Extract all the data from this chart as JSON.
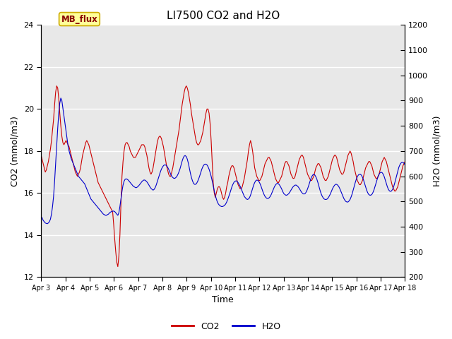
{
  "title": "LI7500 CO2 and H2O",
  "xlabel": "Time",
  "ylabel_left": "CO2 (mmol/m3)",
  "ylabel_right": "H2O (mmol/m3)",
  "ylim_left": [
    12,
    24
  ],
  "ylim_right": [
    200,
    1200
  ],
  "yticks_left": [
    12,
    14,
    16,
    18,
    20,
    22,
    24
  ],
  "yticks_right": [
    200,
    300,
    400,
    500,
    600,
    700,
    800,
    900,
    1000,
    1100,
    1200
  ],
  "xtick_labels": [
    "Apr 3",
    "Apr 4",
    "Apr 5",
    "Apr 6",
    "Apr 7",
    "Apr 8",
    "Apr 9",
    "Apr 10",
    "Apr 11",
    "Apr 12",
    "Apr 13",
    "Apr 14",
    "Apr 15",
    "Apr 16",
    "Apr 17",
    "Apr 18"
  ],
  "co2_color": "#cc0000",
  "h2o_color": "#0000cc",
  "figure_bg": "#ffffff",
  "plot_bg": "#e8e8e8",
  "grid_color": "#ffffff",
  "mb_flux_label": "MB_flux",
  "mb_flux_fg": "#880000",
  "mb_flux_bg": "#ffff99",
  "mb_flux_border": "#ccaa00",
  "legend_co2": "CO2",
  "legend_h2o": "H2O",
  "co2_data": [
    17.8,
    17.6,
    17.4,
    17.2,
    17.0,
    17.1,
    17.3,
    17.5,
    17.8,
    18.1,
    18.5,
    19.0,
    19.5,
    20.2,
    20.8,
    21.1,
    21.0,
    20.5,
    19.8,
    19.2,
    18.7,
    18.4,
    18.3,
    18.4,
    18.5,
    18.4,
    18.3,
    18.2,
    18.0,
    17.8,
    17.6,
    17.4,
    17.2,
    17.0,
    16.9,
    16.8,
    16.9,
    17.0,
    17.2,
    17.5,
    17.8,
    18.0,
    18.2,
    18.4,
    18.5,
    18.4,
    18.3,
    18.1,
    17.9,
    17.7,
    17.5,
    17.3,
    17.1,
    16.9,
    16.7,
    16.5,
    16.4,
    16.3,
    16.2,
    16.1,
    16.0,
    15.9,
    15.8,
    15.7,
    15.6,
    15.5,
    15.4,
    15.3,
    15.2,
    15.1,
    14.5,
    13.8,
    13.2,
    12.7,
    12.5,
    13.0,
    14.0,
    15.5,
    16.8,
    17.5,
    18.0,
    18.3,
    18.4,
    18.4,
    18.3,
    18.2,
    18.0,
    17.9,
    17.8,
    17.7,
    17.7,
    17.7,
    17.8,
    17.9,
    18.0,
    18.1,
    18.2,
    18.3,
    18.3,
    18.3,
    18.2,
    18.0,
    17.8,
    17.5,
    17.2,
    17.0,
    16.9,
    17.0,
    17.2,
    17.5,
    17.8,
    18.1,
    18.4,
    18.6,
    18.7,
    18.7,
    18.6,
    18.4,
    18.2,
    17.9,
    17.6,
    17.3,
    17.1,
    16.9,
    16.8,
    16.8,
    17.0,
    17.2,
    17.5,
    17.8,
    18.1,
    18.4,
    18.7,
    19.0,
    19.4,
    19.8,
    20.2,
    20.5,
    20.8,
    21.0,
    21.1,
    21.0,
    20.8,
    20.5,
    20.2,
    19.8,
    19.5,
    19.2,
    18.9,
    18.6,
    18.4,
    18.3,
    18.3,
    18.4,
    18.5,
    18.7,
    18.9,
    19.2,
    19.5,
    19.8,
    20.0,
    20.0,
    19.8,
    19.3,
    18.5,
    17.5,
    16.5,
    16.0,
    15.8,
    16.0,
    16.2,
    16.3,
    16.3,
    16.2,
    16.0,
    15.8,
    15.7,
    15.8,
    16.0,
    16.3,
    16.5,
    16.8,
    17.0,
    17.2,
    17.3,
    17.3,
    17.2,
    17.0,
    16.8,
    16.6,
    16.4,
    16.3,
    16.2,
    16.2,
    16.3,
    16.5,
    16.7,
    17.0,
    17.3,
    17.6,
    18.0,
    18.3,
    18.5,
    18.3,
    18.0,
    17.6,
    17.2,
    17.0,
    16.8,
    16.7,
    16.6,
    16.6,
    16.7,
    16.8,
    17.0,
    17.2,
    17.4,
    17.5,
    17.6,
    17.7,
    17.7,
    17.6,
    17.5,
    17.3,
    17.1,
    16.9,
    16.7,
    16.6,
    16.5,
    16.5,
    16.6,
    16.7,
    16.8,
    17.0,
    17.2,
    17.4,
    17.5,
    17.5,
    17.4,
    17.3,
    17.1,
    16.9,
    16.8,
    16.7,
    16.7,
    16.8,
    17.0,
    17.2,
    17.4,
    17.6,
    17.7,
    17.8,
    17.8,
    17.7,
    17.5,
    17.3,
    17.1,
    16.9,
    16.8,
    16.7,
    16.6,
    16.6,
    16.7,
    16.8,
    17.0,
    17.2,
    17.3,
    17.4,
    17.4,
    17.3,
    17.2,
    17.0,
    16.8,
    16.7,
    16.6,
    16.6,
    16.7,
    16.8,
    17.0,
    17.2,
    17.4,
    17.6,
    17.7,
    17.8,
    17.8,
    17.7,
    17.5,
    17.3,
    17.1,
    17.0,
    16.9,
    16.9,
    17.0,
    17.2,
    17.4,
    17.6,
    17.8,
    17.9,
    18.0,
    17.9,
    17.7,
    17.5,
    17.2,
    17.0,
    16.8,
    16.6,
    16.5,
    16.4,
    16.4,
    16.5,
    16.6,
    16.8,
    17.0,
    17.2,
    17.3,
    17.4,
    17.5,
    17.5,
    17.4,
    17.3,
    17.1,
    16.9,
    16.8,
    16.7,
    16.7,
    16.8,
    16.9,
    17.1,
    17.3,
    17.5,
    17.6,
    17.7,
    17.6,
    17.5,
    17.3,
    17.1,
    16.9,
    16.7,
    16.5,
    16.3,
    16.2,
    16.1,
    16.1,
    16.2,
    16.3,
    16.5,
    16.7,
    16.9,
    17.1,
    17.3,
    17.4,
    17.5
  ],
  "h2o_data": [
    440,
    435,
    425,
    420,
    415,
    413,
    412,
    415,
    420,
    430,
    450,
    480,
    520,
    580,
    650,
    720,
    790,
    850,
    890,
    910,
    900,
    870,
    840,
    810,
    780,
    750,
    720,
    700,
    685,
    670,
    660,
    650,
    640,
    630,
    620,
    610,
    600,
    595,
    590,
    585,
    580,
    575,
    570,
    560,
    550,
    540,
    530,
    520,
    510,
    505,
    500,
    495,
    490,
    485,
    480,
    475,
    470,
    465,
    460,
    455,
    450,
    448,
    445,
    445,
    448,
    450,
    455,
    458,
    460,
    462,
    462,
    460,
    455,
    450,
    445,
    455,
    480,
    510,
    540,
    565,
    580,
    588,
    590,
    588,
    585,
    580,
    575,
    570,
    565,
    560,
    558,
    555,
    555,
    558,
    562,
    567,
    572,
    578,
    582,
    585,
    585,
    582,
    578,
    572,
    565,
    558,
    552,
    548,
    545,
    548,
    555,
    565,
    578,
    592,
    605,
    617,
    628,
    636,
    642,
    645,
    645,
    642,
    636,
    628,
    618,
    608,
    600,
    595,
    592,
    592,
    595,
    600,
    608,
    618,
    630,
    645,
    660,
    672,
    680,
    682,
    678,
    668,
    652,
    632,
    612,
    595,
    582,
    572,
    568,
    568,
    572,
    580,
    590,
    602,
    615,
    628,
    638,
    645,
    648,
    648,
    645,
    638,
    628,
    615,
    600,
    582,
    562,
    542,
    525,
    510,
    498,
    490,
    485,
    482,
    480,
    480,
    482,
    485,
    490,
    498,
    508,
    520,
    532,
    545,
    558,
    568,
    576,
    580,
    582,
    580,
    575,
    568,
    560,
    550,
    540,
    530,
    520,
    515,
    510,
    508,
    510,
    515,
    525,
    538,
    552,
    565,
    575,
    582,
    585,
    584,
    580,
    572,
    562,
    550,
    538,
    528,
    520,
    515,
    512,
    512,
    515,
    520,
    528,
    538,
    548,
    558,
    565,
    570,
    572,
    570,
    565,
    558,
    550,
    540,
    532,
    528,
    525,
    525,
    528,
    532,
    538,
    545,
    552,
    558,
    562,
    565,
    565,
    562,
    558,
    552,
    545,
    538,
    533,
    530,
    530,
    533,
    540,
    550,
    562,
    575,
    588,
    598,
    605,
    608,
    605,
    598,
    588,
    575,
    560,
    545,
    532,
    522,
    515,
    510,
    508,
    508,
    510,
    515,
    522,
    530,
    540,
    550,
    558,
    564,
    568,
    568,
    565,
    560,
    552,
    542,
    532,
    522,
    512,
    505,
    500,
    498,
    498,
    502,
    508,
    518,
    530,
    545,
    560,
    575,
    588,
    598,
    605,
    608,
    608,
    604,
    596,
    585,
    572,
    558,
    545,
    535,
    528,
    525,
    525,
    528,
    535,
    545,
    558,
    572,
    586,
    598,
    608,
    614,
    616,
    614,
    608,
    598,
    585,
    572,
    558,
    548,
    542,
    540,
    542,
    548,
    558,
    572,
    588,
    605,
    620,
    635,
    645,
    652,
    655,
    655,
    652,
    645
  ]
}
